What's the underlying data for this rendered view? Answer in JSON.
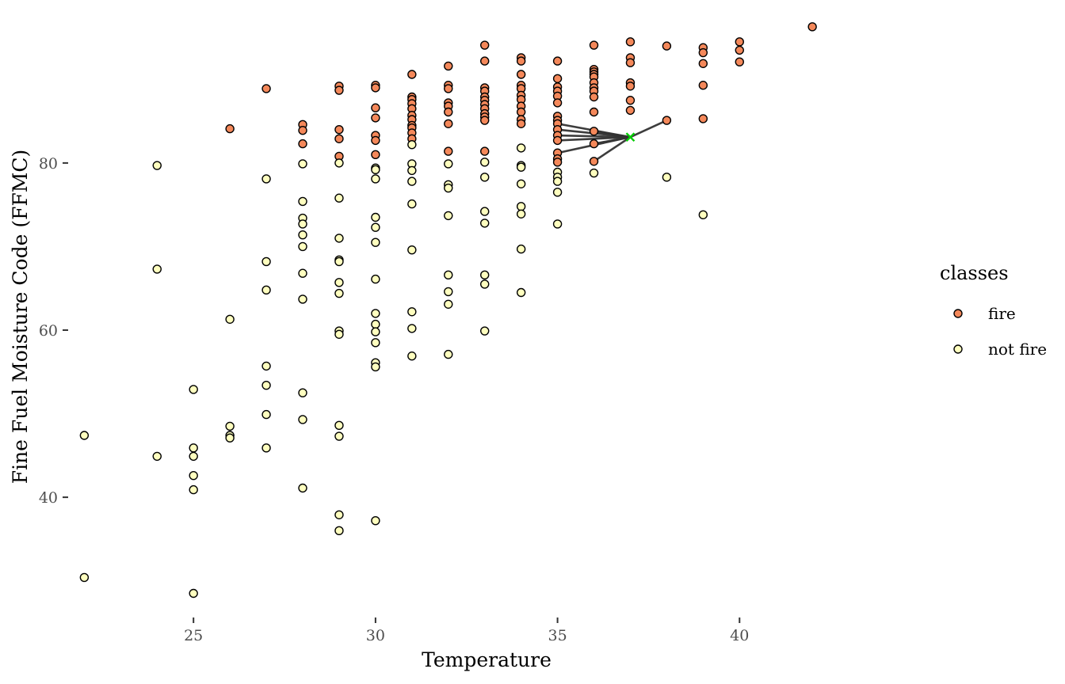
{
  "chart_data": {
    "type": "scatter",
    "xlabel": "Temperature",
    "ylabel": "Fine Fuel Moisture Code (FFMC)",
    "xlim": [
      21.6,
      44.5
    ],
    "ylim": [
      25.8,
      97.8
    ],
    "xticks": [
      25,
      30,
      35,
      40
    ],
    "yticks": [
      40,
      60,
      80
    ],
    "grid": false,
    "legend": {
      "title": "classes",
      "placement": "right"
    },
    "colors": {
      "fire": "#f4885a",
      "not fire": "#ffffbf",
      "outline": "#000000",
      "query": "#00cc00",
      "neighbor_line": "#333333"
    },
    "query_point": {
      "x": 37,
      "y": 83.1,
      "marker": "x"
    },
    "neighbor_links": [
      [
        35,
        84.7
      ],
      [
        35,
        84.0
      ],
      [
        35,
        83.3
      ],
      [
        35,
        82.7
      ],
      [
        35,
        81.2
      ],
      [
        36,
        83.8
      ],
      [
        36,
        82.3
      ],
      [
        36,
        80.2
      ],
      [
        38,
        85.1
      ]
    ],
    "series": [
      {
        "name": "fire",
        "points": [
          [
            26,
            84.1
          ],
          [
            27,
            88.9
          ],
          [
            28,
            84.6
          ],
          [
            28,
            83.9
          ],
          [
            28,
            82.3
          ],
          [
            29,
            89.2
          ],
          [
            29,
            88.7
          ],
          [
            29,
            84.0
          ],
          [
            29,
            82.9
          ],
          [
            29,
            80.8
          ],
          [
            30,
            89.3
          ],
          [
            30,
            89.0
          ],
          [
            30,
            86.6
          ],
          [
            30,
            85.4
          ],
          [
            30,
            83.3
          ],
          [
            30,
            82.7
          ],
          [
            30,
            81.0
          ],
          [
            31,
            90.6
          ],
          [
            31,
            87.9
          ],
          [
            31,
            87.6
          ],
          [
            31,
            87.1
          ],
          [
            31,
            86.5
          ],
          [
            31,
            85.7
          ],
          [
            31,
            85.2
          ],
          [
            31,
            84.5
          ],
          [
            31,
            84.2
          ],
          [
            31,
            83.6
          ],
          [
            31,
            82.9
          ],
          [
            32,
            91.6
          ],
          [
            32,
            89.3
          ],
          [
            32,
            88.9
          ],
          [
            32,
            87.2
          ],
          [
            32,
            86.8
          ],
          [
            32,
            86.1
          ],
          [
            32,
            84.7
          ],
          [
            32,
            81.4
          ],
          [
            33,
            94.1
          ],
          [
            33,
            92.2
          ],
          [
            33,
            89.0
          ],
          [
            33,
            88.6
          ],
          [
            33,
            87.9
          ],
          [
            33,
            87.5
          ],
          [
            33,
            87.0
          ],
          [
            33,
            86.5
          ],
          [
            33,
            85.9
          ],
          [
            33,
            85.5
          ],
          [
            33,
            85.1
          ],
          [
            33,
            81.4
          ],
          [
            34,
            92.6
          ],
          [
            34,
            92.2
          ],
          [
            34,
            90.6
          ],
          [
            34,
            89.3
          ],
          [
            34,
            88.9
          ],
          [
            34,
            88.1
          ],
          [
            34,
            87.6
          ],
          [
            34,
            86.8
          ],
          [
            34,
            86.1
          ],
          [
            34,
            85.2
          ],
          [
            34,
            84.7
          ],
          [
            35,
            92.2
          ],
          [
            35,
            90.1
          ],
          [
            35,
            89.1
          ],
          [
            35,
            88.6
          ],
          [
            35,
            88.0
          ],
          [
            35,
            87.2
          ],
          [
            35,
            85.6
          ],
          [
            35,
            85.1
          ],
          [
            35,
            84.7
          ],
          [
            35,
            84.0
          ],
          [
            35,
            83.3
          ],
          [
            35,
            82.7
          ],
          [
            35,
            81.2
          ],
          [
            35,
            80.5
          ],
          [
            35,
            80.1
          ],
          [
            36,
            94.1
          ],
          [
            36,
            91.2
          ],
          [
            36,
            90.9
          ],
          [
            36,
            90.6
          ],
          [
            36,
            90.3
          ],
          [
            36,
            89.6
          ],
          [
            36,
            89.0
          ],
          [
            36,
            88.6
          ],
          [
            36,
            87.9
          ],
          [
            36,
            86.1
          ],
          [
            36,
            83.8
          ],
          [
            36,
            82.3
          ],
          [
            36,
            80.2
          ],
          [
            37,
            94.5
          ],
          [
            37,
            92.6
          ],
          [
            37,
            92.0
          ],
          [
            37,
            89.6
          ],
          [
            37,
            89.2
          ],
          [
            37,
            87.5
          ],
          [
            37,
            86.3
          ],
          [
            38,
            94.0
          ],
          [
            38,
            85.1
          ],
          [
            39,
            93.8
          ],
          [
            39,
            93.2
          ],
          [
            39,
            91.9
          ],
          [
            39,
            89.3
          ],
          [
            39,
            85.3
          ],
          [
            40,
            94.5
          ],
          [
            40,
            93.5
          ],
          [
            40,
            92.1
          ],
          [
            42,
            96.3
          ]
        ]
      },
      {
        "name": "not fire",
        "points": [
          [
            22,
            47.4
          ],
          [
            22,
            30.4
          ],
          [
            24,
            79.7
          ],
          [
            24,
            67.3
          ],
          [
            24,
            44.9
          ],
          [
            25,
            52.9
          ],
          [
            25,
            45.9
          ],
          [
            25,
            44.9
          ],
          [
            25,
            42.6
          ],
          [
            25,
            40.9
          ],
          [
            25,
            28.5
          ],
          [
            26,
            61.3
          ],
          [
            26,
            48.5
          ],
          [
            26,
            47.4
          ],
          [
            26,
            47.1
          ],
          [
            27,
            78.1
          ],
          [
            27,
            68.2
          ],
          [
            27,
            64.8
          ],
          [
            27,
            55.7
          ],
          [
            27,
            53.4
          ],
          [
            27,
            49.9
          ],
          [
            27,
            45.9
          ],
          [
            28,
            79.9
          ],
          [
            28,
            75.4
          ],
          [
            28,
            73.4
          ],
          [
            28,
            72.7
          ],
          [
            28,
            71.4
          ],
          [
            28,
            70.0
          ],
          [
            28,
            66.8
          ],
          [
            28,
            63.7
          ],
          [
            28,
            52.5
          ],
          [
            28,
            49.3
          ],
          [
            28,
            41.1
          ],
          [
            29,
            80.0
          ],
          [
            29,
            75.8
          ],
          [
            29,
            71.0
          ],
          [
            29,
            68.4
          ],
          [
            29,
            68.2
          ],
          [
            29,
            65.7
          ],
          [
            29,
            64.4
          ],
          [
            29,
            59.9
          ],
          [
            29,
            59.5
          ],
          [
            29,
            48.6
          ],
          [
            29,
            47.3
          ],
          [
            29,
            37.9
          ],
          [
            29,
            36.0
          ],
          [
            30,
            79.4
          ],
          [
            30,
            79.2
          ],
          [
            30,
            78.1
          ],
          [
            30,
            73.5
          ],
          [
            30,
            72.3
          ],
          [
            30,
            70.5
          ],
          [
            30,
            66.1
          ],
          [
            30,
            62.0
          ],
          [
            30,
            60.7
          ],
          [
            30,
            59.8
          ],
          [
            30,
            58.5
          ],
          [
            30,
            56.1
          ],
          [
            30,
            55.6
          ],
          [
            30,
            37.2
          ],
          [
            31,
            82.2
          ],
          [
            31,
            79.9
          ],
          [
            31,
            79.1
          ],
          [
            31,
            77.8
          ],
          [
            31,
            75.1
          ],
          [
            31,
            69.6
          ],
          [
            31,
            62.2
          ],
          [
            31,
            60.2
          ],
          [
            31,
            56.9
          ],
          [
            32,
            79.9
          ],
          [
            32,
            77.4
          ],
          [
            32,
            77.0
          ],
          [
            32,
            73.7
          ],
          [
            32,
            66.6
          ],
          [
            32,
            64.6
          ],
          [
            32,
            63.1
          ],
          [
            32,
            57.1
          ],
          [
            33,
            80.1
          ],
          [
            33,
            78.3
          ],
          [
            33,
            74.2
          ],
          [
            33,
            72.8
          ],
          [
            33,
            66.6
          ],
          [
            33,
            65.5
          ],
          [
            33,
            59.9
          ],
          [
            34,
            81.8
          ],
          [
            34,
            79.7
          ],
          [
            34,
            79.5
          ],
          [
            34,
            77.5
          ],
          [
            34,
            74.8
          ],
          [
            34,
            73.9
          ],
          [
            34,
            69.7
          ],
          [
            34,
            64.5
          ],
          [
            35,
            78.9
          ],
          [
            35,
            78.3
          ],
          [
            35,
            77.8
          ],
          [
            35,
            76.5
          ],
          [
            35,
            72.7
          ],
          [
            36,
            78.8
          ],
          [
            38,
            78.3
          ],
          [
            39,
            73.8
          ]
        ]
      }
    ]
  },
  "legend": {
    "title": "classes",
    "items": [
      {
        "label": "fire",
        "color": "#f4885a"
      },
      {
        "label": "not fire",
        "color": "#ffffbf"
      }
    ]
  }
}
